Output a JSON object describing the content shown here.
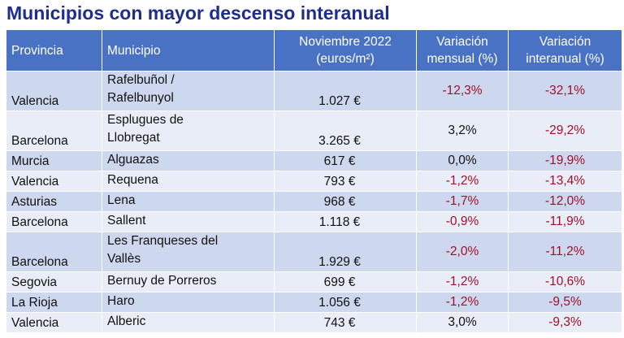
{
  "title": "Municipios con mayor descenso interanual",
  "headers": {
    "provincia": "Provincia",
    "municipio": "Municipio",
    "precio_line1": "Noviembre 2022",
    "precio_line2": "(euros/m²)",
    "mensual_line1": "Variación",
    "mensual_line2": "mensual (%)",
    "interanual_line1": "Variación",
    "interanual_line2": "interanual (%)"
  },
  "rows": [
    {
      "provincia": "Valencia",
      "municipio_l1": "Rafelbuñol /",
      "municipio_l2": "Rafelbunyol",
      "precio": "1.027 €",
      "mensual": "-12,3%",
      "interanual": "-32,1%"
    },
    {
      "provincia": "Barcelona",
      "municipio_l1": "Esplugues de",
      "municipio_l2": "Llobregat",
      "precio": "3.265 €",
      "mensual": "3,2%",
      "interanual": "-29,2%"
    },
    {
      "provincia": "Murcia",
      "municipio_l1": "Alguazas",
      "precio": "617 €",
      "mensual": "0,0%",
      "interanual": "-19,9%"
    },
    {
      "provincia": "Valencia",
      "municipio_l1": "Requena",
      "precio": "793 €",
      "mensual": "-1,2%",
      "interanual": "-13,4%"
    },
    {
      "provincia": "Asturias",
      "municipio_l1": "Lena",
      "precio": "968 €",
      "mensual": "-1,7%",
      "interanual": "-12,0%"
    },
    {
      "provincia": "Barcelona",
      "municipio_l1": "Sallent",
      "precio": "1.118 €",
      "mensual": "-0,9%",
      "interanual": "-11,9%"
    },
    {
      "provincia": "Barcelona",
      "municipio_l1": "Les Franqueses del",
      "municipio_l2": "Vallès",
      "precio": "1.929 €",
      "mensual": "-2,0%",
      "interanual": "-11,2%"
    },
    {
      "provincia": "Segovia",
      "municipio_l1": "Bernuy de Porreros",
      "precio": "699 €",
      "mensual": "-1,2%",
      "interanual": "-10,6%"
    },
    {
      "provincia": "La Rioja",
      "municipio_l1": "Haro",
      "precio": "1.056 €",
      "mensual": "-1,2%",
      "interanual": "-9,5%"
    },
    {
      "provincia": "Valencia",
      "municipio_l1": "Alberic",
      "precio": "743 €",
      "mensual": "3,0%",
      "interanual": "-9,3%"
    }
  ]
}
